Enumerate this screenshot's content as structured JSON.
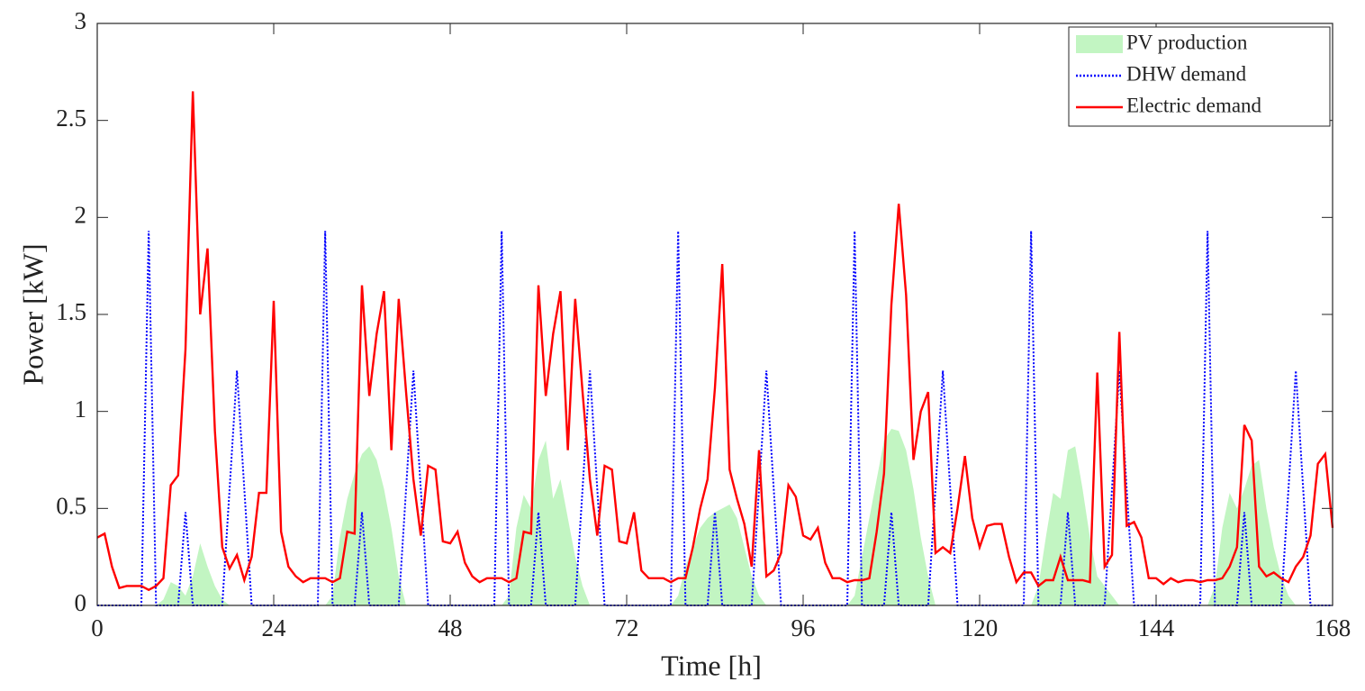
{
  "chart_data": {
    "type": "line",
    "x_label": "Time [h]",
    "y_label": "Power [kW]",
    "xlim": [
      0,
      168
    ],
    "xticks": [
      0,
      24,
      48,
      72,
      96,
      120,
      144,
      168
    ],
    "ylim": [
      0,
      3
    ],
    "yticks": [
      0,
      0.5,
      1,
      1.5,
      2,
      2.5,
      3
    ],
    "legend": "upper right",
    "grid": false,
    "x": [
      0,
      1,
      2,
      3,
      4,
      5,
      6,
      7,
      8,
      9,
      10,
      11,
      12,
      13,
      14,
      15,
      16,
      17,
      18,
      19,
      20,
      21,
      22,
      23,
      24,
      25,
      26,
      27,
      28,
      29,
      30,
      31,
      32,
      33,
      34,
      35,
      36,
      37,
      38,
      39,
      40,
      41,
      42,
      43,
      44,
      45,
      46,
      47,
      48,
      49,
      50,
      51,
      52,
      53,
      54,
      55,
      56,
      57,
      58,
      59,
      60,
      61,
      62,
      63,
      64,
      65,
      66,
      67,
      68,
      69,
      70,
      71,
      72,
      73,
      74,
      75,
      76,
      77,
      78,
      79,
      80,
      81,
      82,
      83,
      84,
      85,
      86,
      87,
      88,
      89,
      90,
      91,
      92,
      93,
      94,
      95,
      96,
      97,
      98,
      99,
      100,
      101,
      102,
      103,
      104,
      105,
      106,
      107,
      108,
      109,
      110,
      111,
      112,
      113,
      114,
      115,
      116,
      117,
      118,
      119,
      120,
      121,
      122,
      123,
      124,
      125,
      126,
      127,
      128,
      129,
      130,
      131,
      132,
      133,
      134,
      135,
      136,
      137,
      138,
      139,
      140,
      141,
      142,
      143,
      144,
      145,
      146,
      147,
      148,
      149,
      150,
      151,
      152,
      153,
      154,
      155,
      156,
      157,
      158,
      159,
      160,
      161,
      162,
      163,
      164,
      165,
      166,
      167,
      168
    ],
    "series": [
      {
        "name": "PV production",
        "type": "area",
        "color": "#c2f5c2",
        "values": [
          0,
          0,
          0,
          0,
          0,
          0,
          0,
          0,
          0,
          0.03,
          0.12,
          0.1,
          0.05,
          0.15,
          0.32,
          0.2,
          0.1,
          0.03,
          0,
          0,
          0,
          0,
          0,
          0,
          0,
          0,
          0,
          0,
          0,
          0,
          0,
          0,
          0.05,
          0.35,
          0.55,
          0.68,
          0.78,
          0.82,
          0.75,
          0.6,
          0.4,
          0.15,
          0,
          0,
          0,
          0,
          0,
          0,
          0,
          0,
          0,
          0,
          0,
          0,
          0,
          0,
          0.05,
          0.4,
          0.57,
          0.5,
          0.75,
          0.85,
          0.55,
          0.65,
          0.45,
          0.25,
          0.1,
          0,
          0,
          0,
          0,
          0,
          0,
          0,
          0,
          0,
          0,
          0,
          0,
          0.05,
          0.2,
          0.3,
          0.4,
          0.45,
          0.48,
          0.5,
          0.52,
          0.45,
          0.3,
          0.15,
          0.05,
          0,
          0,
          0,
          0,
          0,
          0,
          0,
          0,
          0,
          0,
          0,
          0,
          0.05,
          0.25,
          0.45,
          0.65,
          0.85,
          0.91,
          0.9,
          0.8,
          0.6,
          0.35,
          0.15,
          0,
          0,
          0,
          0,
          0,
          0,
          0,
          0,
          0,
          0,
          0,
          0,
          0,
          0,
          0.1,
          0.35,
          0.58,
          0.55,
          0.8,
          0.82,
          0.6,
          0.35,
          0.15,
          0.1,
          0.05,
          0,
          0,
          0,
          0,
          0,
          0,
          0,
          0,
          0,
          0,
          0,
          0,
          0,
          0.1,
          0.4,
          0.58,
          0.5,
          0.6,
          0.72,
          0.75,
          0.5,
          0.3,
          0.15,
          0.05,
          0,
          0,
          0,
          0,
          0,
          0
        ]
      },
      {
        "name": "DHW demand",
        "type": "dotted",
        "color": "#0000ff",
        "values": [
          0,
          0,
          0,
          0,
          0,
          0,
          0,
          1.93,
          0,
          0,
          0,
          0,
          0.48,
          0,
          0,
          0,
          0,
          0,
          0.6,
          1.21,
          0.6,
          0,
          0,
          0,
          0,
          0,
          0,
          0,
          0,
          0,
          0,
          1.93,
          0,
          0,
          0,
          0,
          0.48,
          0,
          0,
          0,
          0,
          0,
          0.6,
          1.21,
          0.6,
          0,
          0,
          0,
          0,
          0,
          0,
          0,
          0,
          0,
          0,
          1.93,
          0,
          0,
          0,
          0,
          0.48,
          0,
          0,
          0,
          0,
          0,
          0.6,
          1.21,
          0.6,
          0,
          0,
          0,
          0,
          0,
          0,
          0,
          0,
          0,
          0,
          1.93,
          0,
          0,
          0,
          0,
          0.48,
          0,
          0,
          0,
          0,
          0,
          0.6,
          1.21,
          0.6,
          0,
          0,
          0,
          0,
          0,
          0,
          0,
          0,
          0,
          0,
          1.93,
          0,
          0,
          0,
          0,
          0.48,
          0,
          0,
          0,
          0,
          0,
          0.6,
          1.21,
          0.6,
          0,
          0,
          0,
          0,
          0,
          0,
          0,
          0,
          0,
          0,
          1.93,
          0,
          0,
          0,
          0,
          0.48,
          0,
          0,
          0,
          0,
          0,
          0.6,
          1.21,
          0.6,
          0,
          0,
          0,
          0,
          0,
          0,
          0,
          0,
          0,
          0,
          1.93,
          0,
          0,
          0,
          0,
          0.48,
          0,
          0,
          0,
          0,
          0,
          0.6,
          1.21,
          0.6,
          0,
          0,
          0,
          0
        ]
      },
      {
        "name": "Electric demand",
        "type": "solid",
        "color": "#ff0000",
        "values": [
          0.35,
          0.37,
          0.2,
          0.09,
          0.1,
          0.1,
          0.1,
          0.08,
          0.1,
          0.14,
          0.62,
          0.67,
          1.32,
          2.65,
          1.5,
          1.84,
          0.9,
          0.3,
          0.19,
          0.26,
          0.13,
          0.25,
          0.58,
          0.58,
          1.57,
          0.38,
          0.2,
          0.15,
          0.12,
          0.14,
          0.14,
          0.14,
          0.12,
          0.14,
          0.38,
          0.37,
          1.65,
          1.08,
          1.4,
          1.62,
          0.8,
          1.58,
          1.1,
          0.65,
          0.36,
          0.72,
          0.7,
          0.33,
          0.32,
          0.38,
          0.22,
          0.15,
          0.12,
          0.14,
          0.14,
          0.14,
          0.12,
          0.14,
          0.38,
          0.37,
          1.65,
          1.08,
          1.4,
          1.62,
          0.8,
          1.58,
          1.1,
          0.65,
          0.36,
          0.72,
          0.7,
          0.33,
          0.32,
          0.48,
          0.18,
          0.14,
          0.14,
          0.14,
          0.12,
          0.14,
          0.14,
          0.3,
          0.5,
          0.65,
          1.12,
          1.76,
          0.7,
          0.55,
          0.42,
          0.2,
          0.8,
          0.15,
          0.18,
          0.27,
          0.62,
          0.56,
          0.36,
          0.34,
          0.4,
          0.22,
          0.14,
          0.14,
          0.12,
          0.13,
          0.13,
          0.14,
          0.38,
          0.68,
          1.55,
          2.07,
          1.6,
          0.75,
          1.0,
          1.1,
          0.27,
          0.3,
          0.27,
          0.5,
          0.77,
          0.45,
          0.3,
          0.41,
          0.42,
          0.42,
          0.25,
          0.12,
          0.17,
          0.17,
          0.1,
          0.13,
          0.13,
          0.25,
          0.13,
          0.13,
          0.13,
          0.12,
          1.2,
          0.2,
          0.26,
          1.41,
          0.41,
          0.43,
          0.35,
          0.14,
          0.14,
          0.11,
          0.14,
          0.12,
          0.13,
          0.13,
          0.12,
          0.13,
          0.13,
          0.14,
          0.2,
          0.3,
          0.93,
          0.85,
          0.2,
          0.15,
          0.17,
          0.14,
          0.12,
          0.2,
          0.25,
          0.36,
          0.73,
          0.78,
          0.4
        ]
      }
    ]
  }
}
